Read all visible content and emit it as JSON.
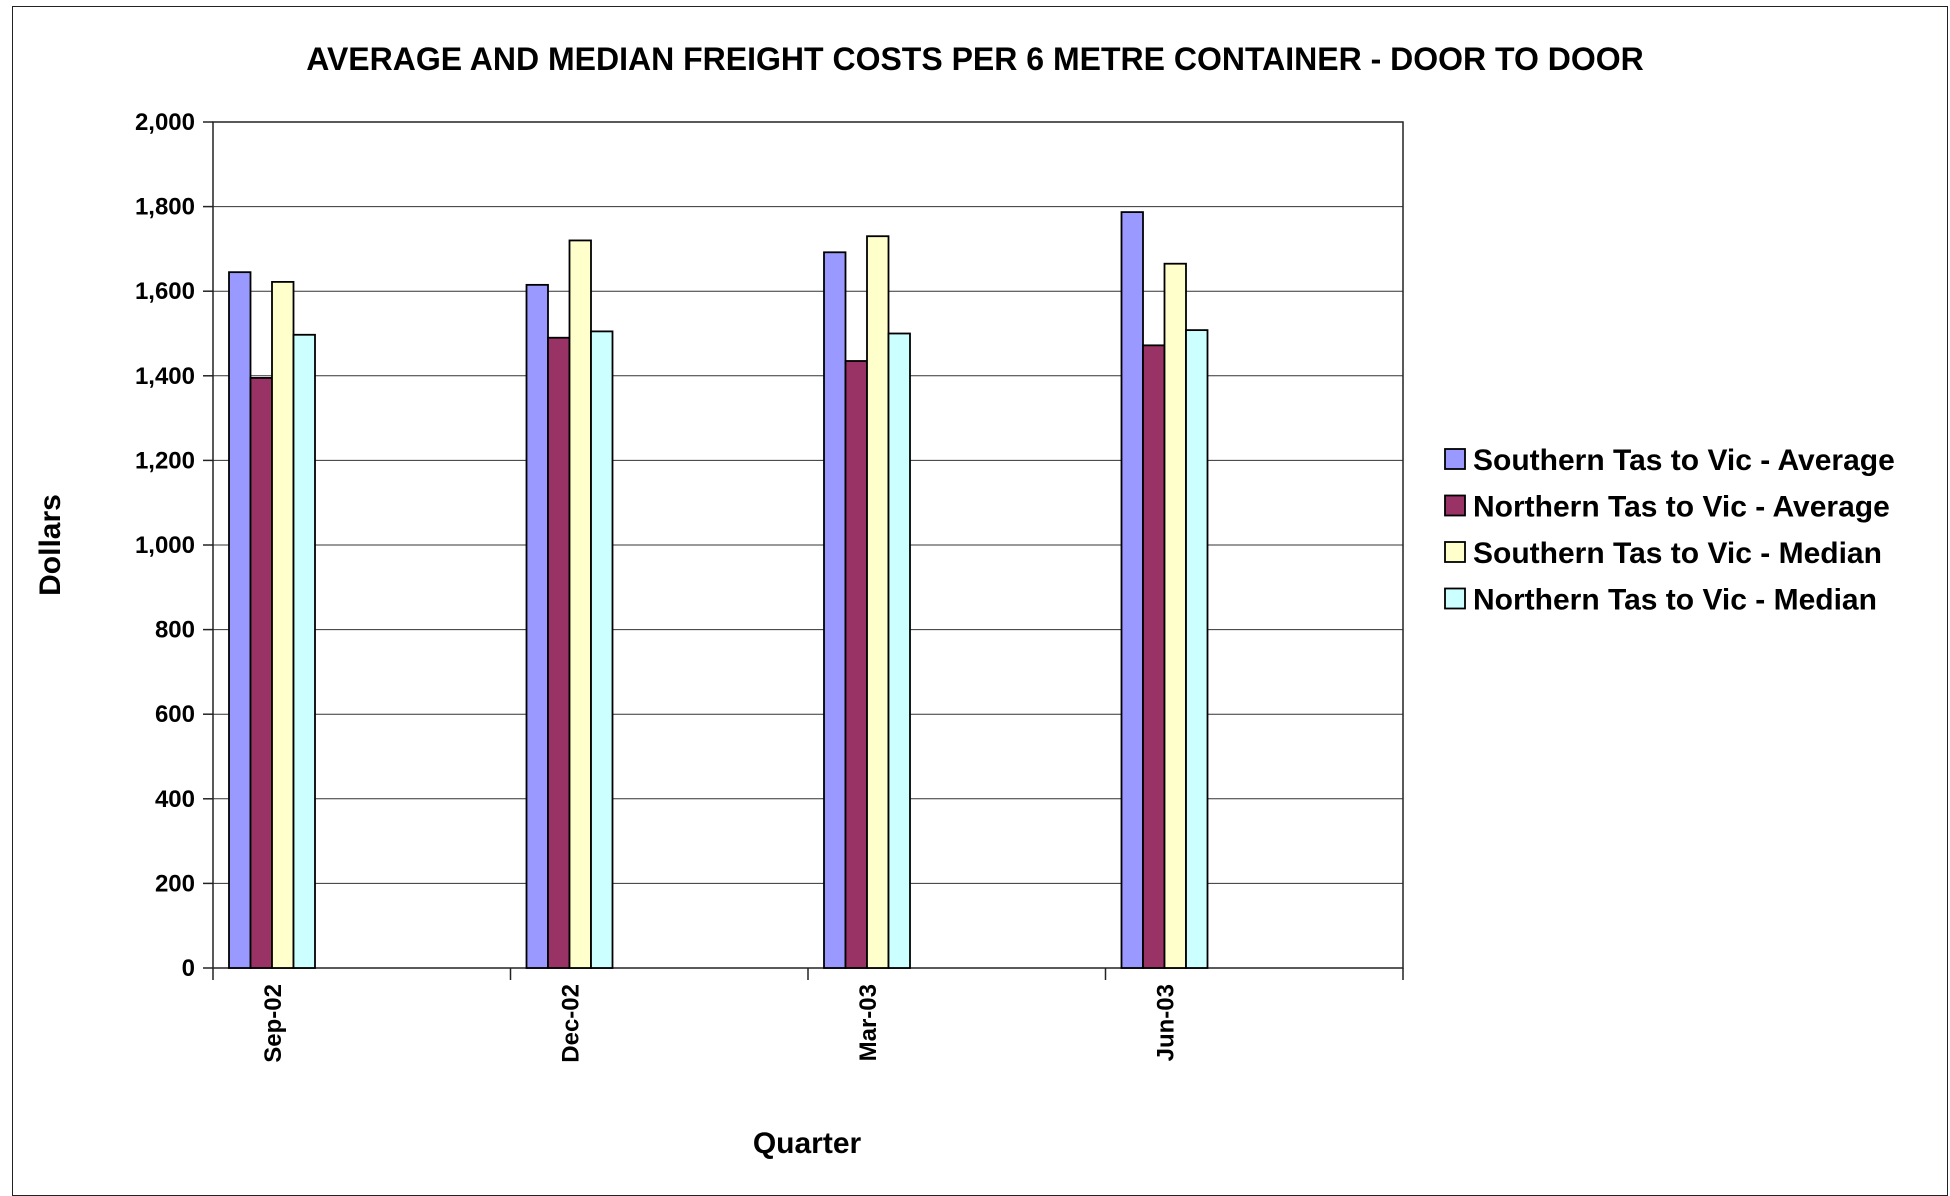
{
  "chart_data": {
    "type": "bar",
    "title": "AVERAGE AND MEDIAN FREIGHT COSTS PER 6 METRE CONTAINER - DOOR TO DOOR",
    "xlabel": "Quarter",
    "ylabel": "Dollars",
    "categories": [
      "Sep-02",
      "Dec-02",
      "Mar-03",
      "Jun-03"
    ],
    "ylim": [
      0,
      2000
    ],
    "yticks": [
      "0",
      "200",
      "400",
      "600",
      "800",
      "1,000",
      "1,200",
      "1,400",
      "1,600",
      "1,800",
      "2,000"
    ],
    "grid": true,
    "legend_position": "right",
    "series": [
      {
        "name": "Southern Tas to Vic - Average",
        "color": "#9999ff",
        "values": [
          1645,
          1615,
          1692,
          1787
        ]
      },
      {
        "name": "Northern Tas to Vic - Average",
        "color": "#993366",
        "values": [
          1395,
          1490,
          1435,
          1472
        ]
      },
      {
        "name": "Southern Tas to Vic - Median",
        "color": "#ffffcc",
        "values": [
          1622,
          1720,
          1730,
          1665
        ]
      },
      {
        "name": "Northern Tas to Vic - Median",
        "color": "#ccffff",
        "values": [
          1497,
          1505,
          1500,
          1508
        ]
      }
    ]
  }
}
